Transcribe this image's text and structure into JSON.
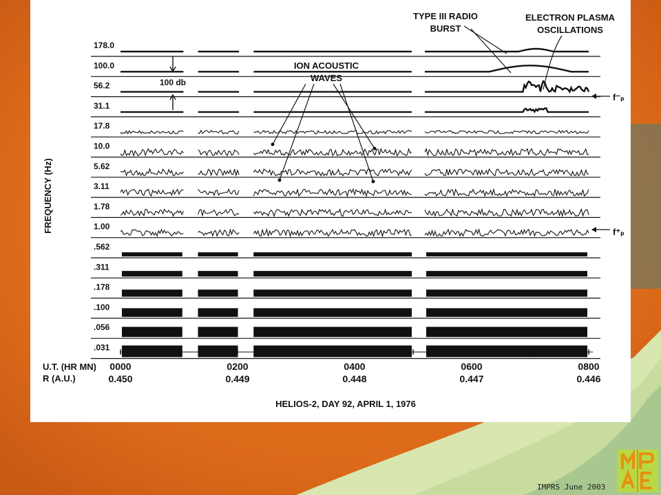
{
  "chart_data": {
    "type": "line",
    "title": "",
    "xlabel": "U.T. (HR MN)",
    "ylabel": "FREQUENCY (Hz)",
    "channels": [
      "178.0",
      "100.0",
      "56.2",
      "31.1",
      "17.8",
      "10.0",
      "5.62",
      "3.11",
      "1.78",
      "1.00",
      ".562",
      ".311",
      ".178",
      ".100",
      ".056",
      ".031"
    ],
    "x_time_ticks": [
      "0000",
      "0200",
      "0400",
      "0600",
      "0800"
    ],
    "x_distance_label": "R (A.U.)",
    "x_distance_ticks": [
      "0.450",
      "0.449",
      "0.448",
      "0.447",
      "0.446"
    ],
    "scale_bar_label": "100 db",
    "annotations": {
      "ion_acoustic": [
        "ION ACOUSTIC",
        "WAVES"
      ],
      "type3": [
        "TYPE III RADIO",
        "BURST"
      ],
      "plasma": [
        "ELECTRON PLASMA",
        "OSCILLATIONS"
      ],
      "fp_minus": "f⁻ₚ",
      "fp_plus": "f⁺ₚ"
    },
    "caption": "HELIOS-2,  DAY 92,  APRIL 1, 1976",
    "data_gaps_hours": [
      [
        1.08,
        1.3
      ],
      [
        2.03,
        2.25
      ],
      [
        5.0,
        5.2
      ]
    ],
    "grid": false
  },
  "footer": "IMPRS June 2003",
  "colors": {
    "background_orange": "#e0701e",
    "figure_white": "#ffffff",
    "ink": "#111111",
    "logo_green": "#b8d846"
  },
  "logo": {
    "lines": [
      "MP",
      "AE"
    ],
    "icon": "mpae-logo"
  }
}
